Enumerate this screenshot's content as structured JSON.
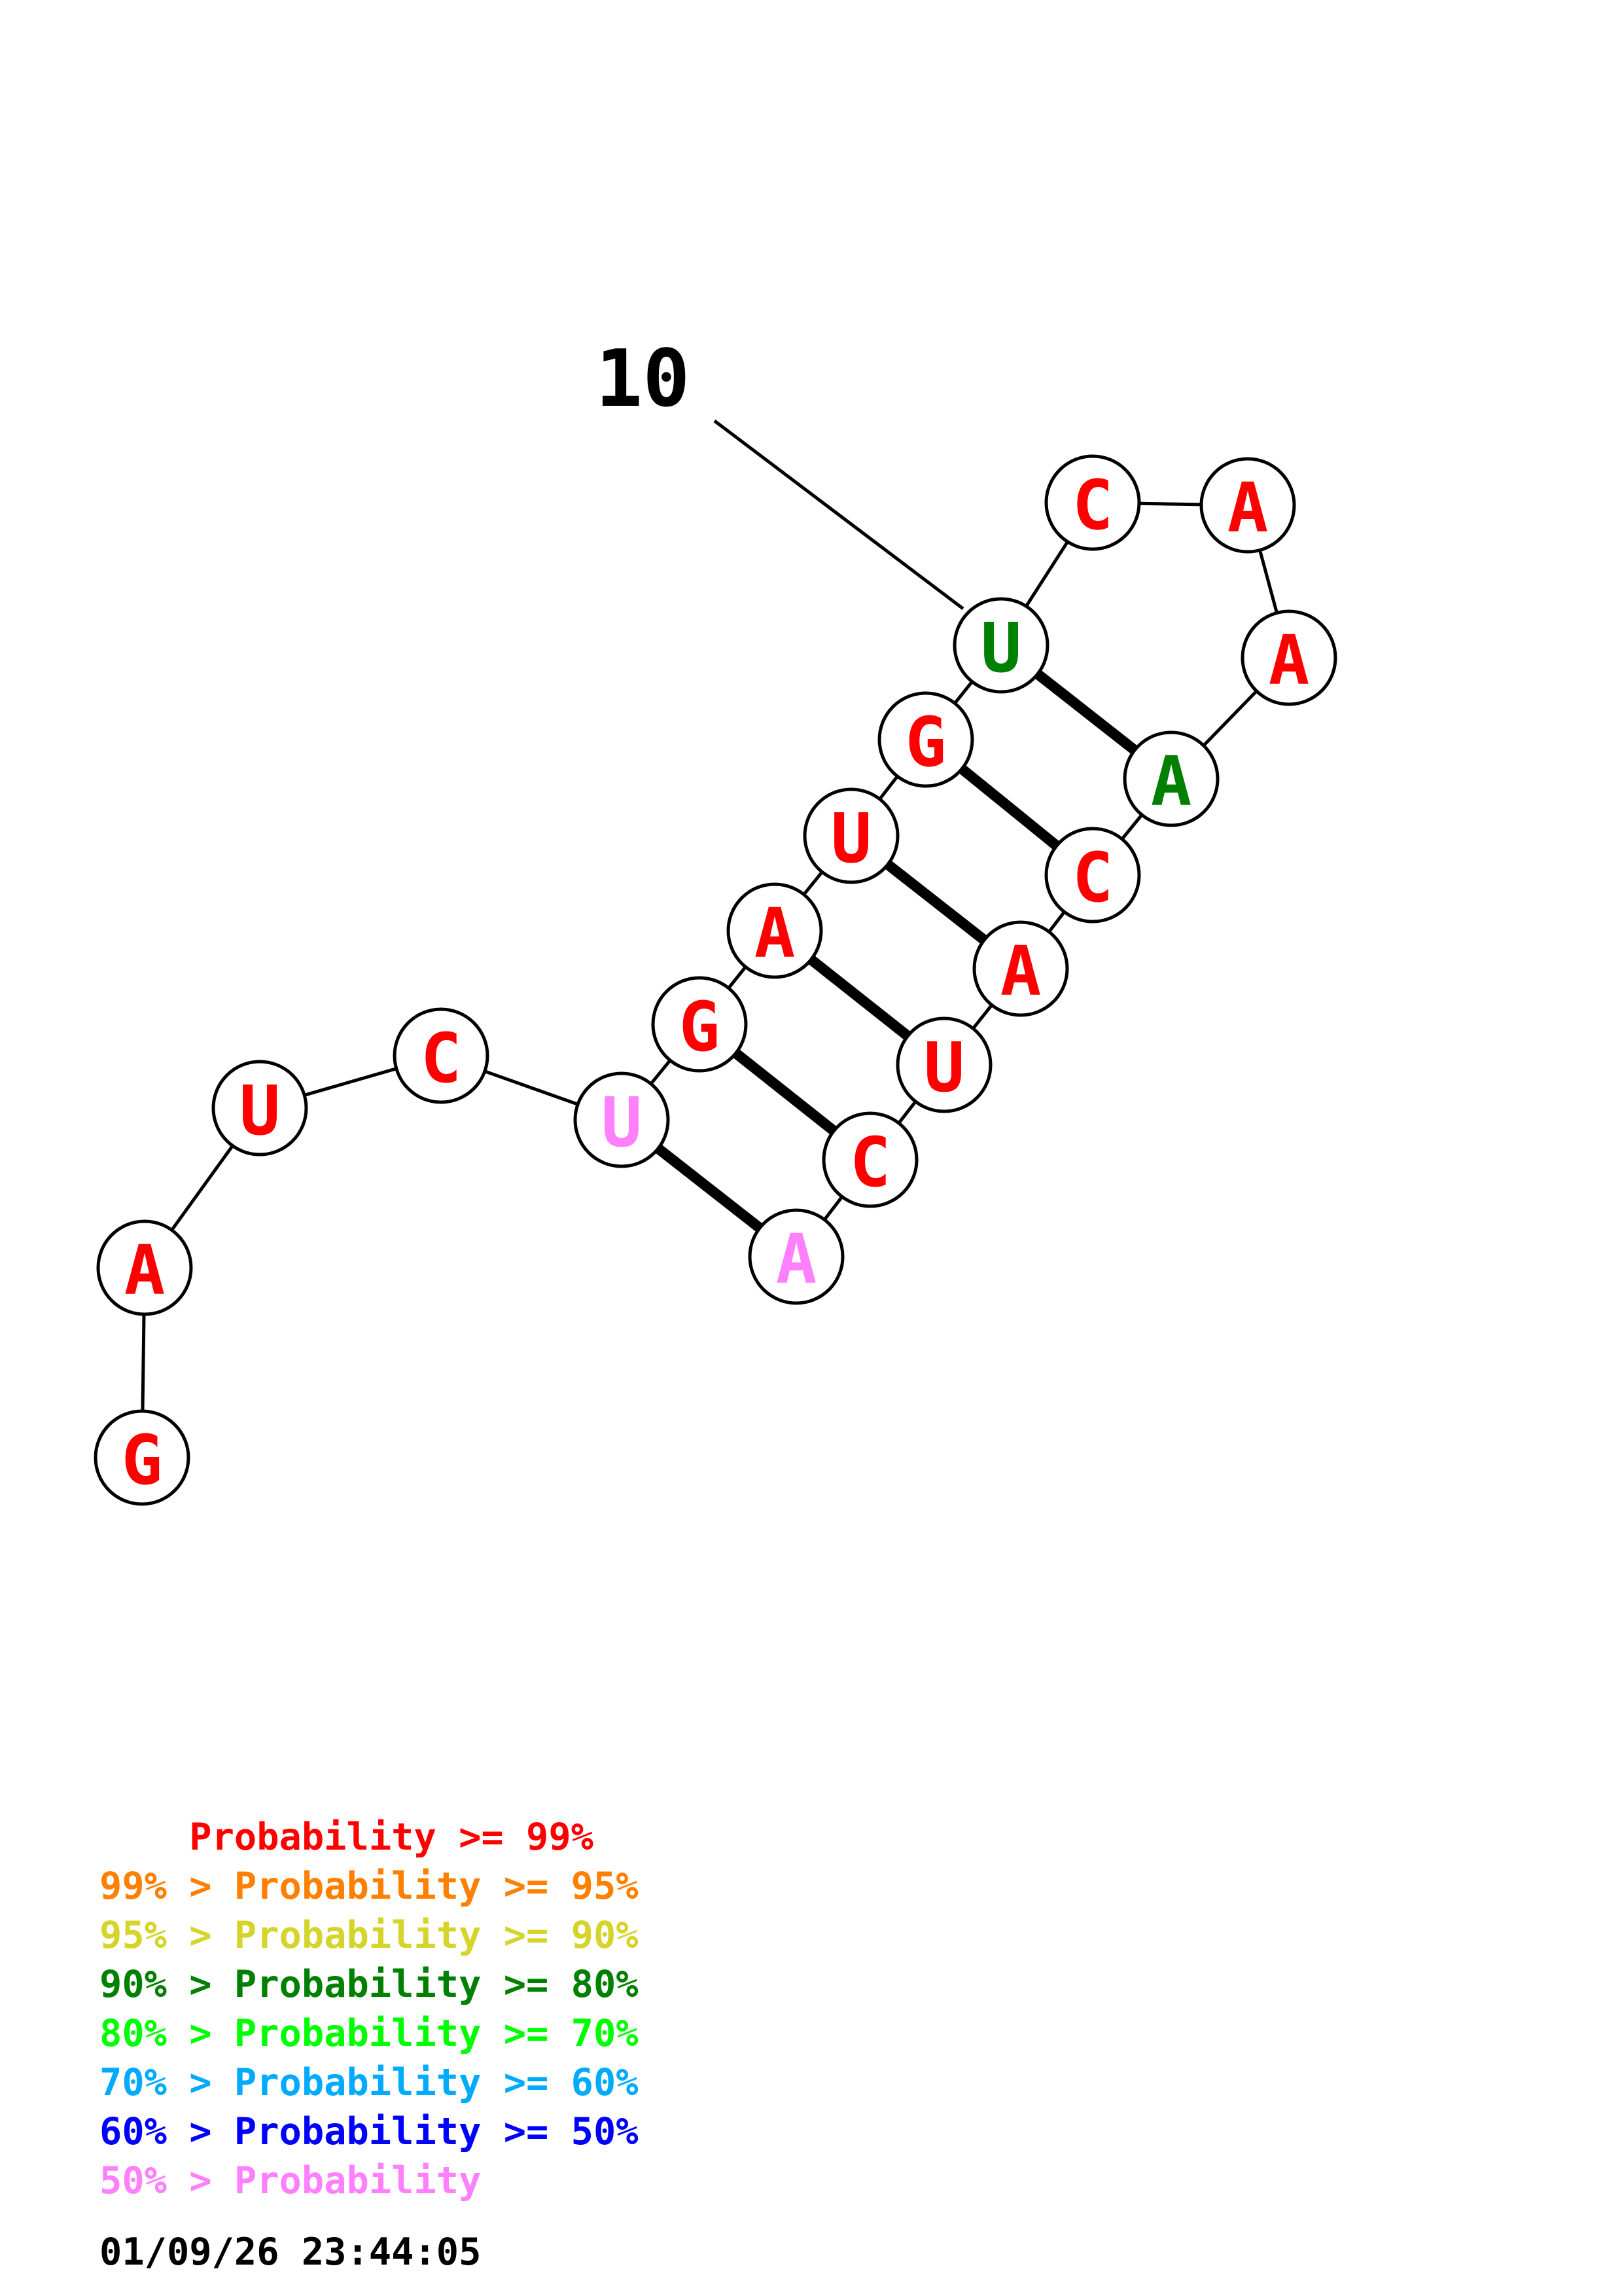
{
  "structure": {
    "sequence": [
      "G",
      "A",
      "U",
      "C",
      "U",
      "G",
      "A",
      "U",
      "G",
      "U",
      "C",
      "A",
      "A",
      "A",
      "C",
      "A",
      "U",
      "C",
      "A"
    ],
    "base_colors": [
      "#ff0000",
      "#ff0000",
      "#ff0000",
      "#ff0000",
      "#ff80ff",
      "#ff0000",
      "#ff0000",
      "#ff0000",
      "#ff0000",
      "#008000",
      "#ff0000",
      "#ff0000",
      "#ff0000",
      "#008000",
      "#ff0000",
      "#ff0000",
      "#ff0000",
      "#ff0000",
      "#ff80ff"
    ],
    "pairs": [
      [
        5,
        19
      ],
      [
        6,
        18
      ],
      [
        7,
        17
      ],
      [
        8,
        16
      ],
      [
        9,
        15
      ],
      [
        10,
        14
      ]
    ],
    "position_label": "10"
  },
  "legend": [
    {
      "prefix": "    ",
      "text": "Probability >= 99%",
      "color": "#ff0000"
    },
    {
      "prefix": "99% > ",
      "text": "Probability >= 95%",
      "color": "#ff8000"
    },
    {
      "prefix": "95% > ",
      "text": "Probability >= 90%",
      "color": "#d4d42b"
    },
    {
      "prefix": "90% > ",
      "text": "Probability >= 80%",
      "color": "#008000"
    },
    {
      "prefix": "80% > ",
      "text": "Probability >= 70%",
      "color": "#00ff00"
    },
    {
      "prefix": "70% > ",
      "text": "Probability >= 60%",
      "color": "#00aaff"
    },
    {
      "prefix": "60% > ",
      "text": "Probability >= 50%",
      "color": "#0000ff"
    },
    {
      "prefix": "50% > ",
      "text": "Probability",
      "color": "#ff80ff"
    }
  ],
  "timestamp": "01/09/26 23:44:05"
}
